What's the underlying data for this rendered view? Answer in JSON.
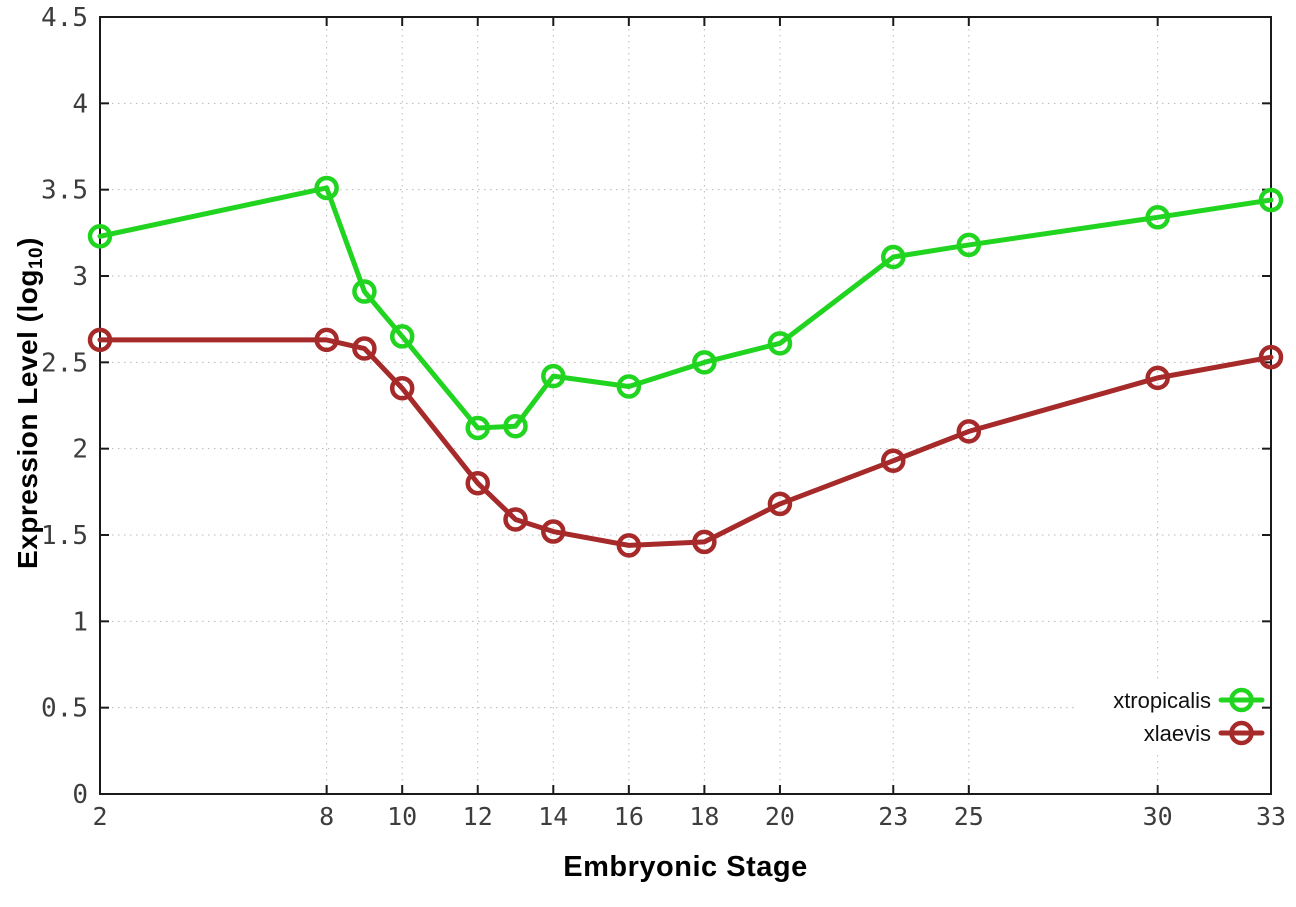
{
  "chart_data": {
    "type": "line",
    "title": "",
    "xlabel": "Embryonic Stage",
    "ylabel": "Expression Level (log10)",
    "ylabel_parts": {
      "main": "Expression Level (log",
      "sub": "10",
      "close": ")"
    },
    "xlim": [
      2,
      33
    ],
    "ylim": [
      0,
      4.5
    ],
    "x_ticks": [
      2,
      8,
      10,
      12,
      14,
      16,
      18,
      20,
      23,
      25,
      30,
      33
    ],
    "y_ticks": [
      0,
      0.5,
      1,
      1.5,
      2,
      2.5,
      3,
      3.5,
      4,
      4.5
    ],
    "grid": true,
    "legend_position": "bottom-right",
    "x": [
      2,
      8,
      9,
      10,
      12,
      13,
      14,
      16,
      18,
      20,
      23,
      25,
      30,
      33
    ],
    "series": [
      {
        "name": "xtropicalis",
        "color": "#20d420",
        "values": [
          3.23,
          3.51,
          2.91,
          2.65,
          2.12,
          2.13,
          2.42,
          2.36,
          2.5,
          2.61,
          3.11,
          3.18,
          3.34,
          3.44
        ]
      },
      {
        "name": "xlaevis",
        "color": "#a62a2a",
        "values": [
          2.63,
          2.63,
          2.58,
          2.35,
          1.8,
          1.59,
          1.52,
          1.44,
          1.46,
          1.68,
          1.93,
          2.1,
          2.41,
          2.53
        ]
      }
    ],
    "colors": {
      "axis": "#1a1a1a",
      "grid": "#b8b8b8",
      "tick_label": "#3d3d3d",
      "legend_text": "#111111",
      "background": "#ffffff"
    }
  }
}
